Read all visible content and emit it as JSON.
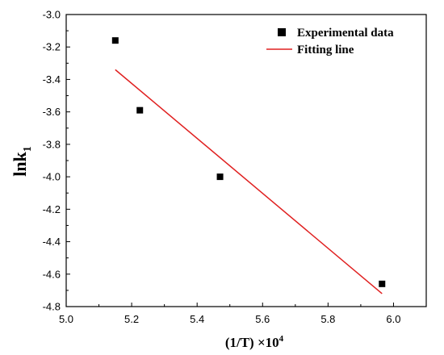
{
  "chart_data": {
    "type": "scatter",
    "xlabel": "(1/T) ×10",
    "xlabel_sup": "4",
    "ylabel": "lnk",
    "ylabel_sub": "1",
    "xlim": [
      5.0,
      6.1
    ],
    "ylim": [
      -4.8,
      -3.0
    ],
    "xticks": [
      "5.0",
      "5.2",
      "5.4",
      "5.6",
      "5.8",
      "6.0"
    ],
    "yticks": [
      "-3.0",
      "-3.2",
      "-3.4",
      "-3.6",
      "-3.8",
      "-4.0",
      "-4.2",
      "-4.4",
      "-4.6",
      "-4.8"
    ],
    "legend_position": "top-right",
    "series": [
      {
        "name": "Experimental data",
        "kind": "scatter",
        "marker": "square",
        "color": "#000000",
        "x": [
          5.15,
          5.225,
          5.47,
          5.965
        ],
        "y": [
          -3.16,
          -3.59,
          -4.0,
          -4.66
        ]
      },
      {
        "name": "Fitting line",
        "kind": "line",
        "color": "#e02020",
        "x": [
          5.15,
          5.965
        ],
        "y": [
          -3.34,
          -4.72
        ]
      }
    ]
  }
}
